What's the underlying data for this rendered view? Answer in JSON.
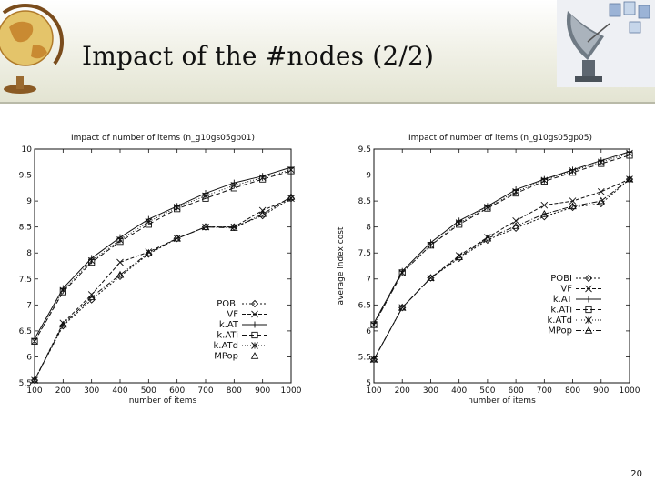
{
  "slide": {
    "title": "Impact of the #nodes (2/2)",
    "page_number": "20",
    "icons": [
      "globe-icon",
      "satellite-dish-icon"
    ],
    "colors": {
      "header_top": "#ffffff",
      "header_bottom": "#e3e4d2",
      "divider": "#b9baa8"
    }
  },
  "chart_data": [
    {
      "type": "line",
      "title": "Impact of number of items (n_g10gs05gp01)",
      "xlabel": "number of items",
      "ylabel": "",
      "x": [
        100,
        200,
        300,
        400,
        500,
        600,
        700,
        800,
        900,
        1000
      ],
      "ylim": [
        5.5,
        10
      ],
      "yticks": [
        "5.5",
        "6",
        "6.5",
        "7",
        "7.5",
        "8",
        "8.5",
        "9",
        "9.5",
        "10"
      ],
      "xticks": [
        "100",
        "200",
        "300",
        "400",
        "500",
        "600",
        "700",
        "800",
        "900",
        "1000"
      ],
      "legend_position": "bottom-right",
      "series": [
        {
          "name": "POBI",
          "marker": "diamond",
          "dash": "2,2",
          "values": [
            5.55,
            6.6,
            7.1,
            7.55,
            7.98,
            8.28,
            8.5,
            8.5,
            8.72,
            9.05
          ]
        },
        {
          "name": "VF",
          "marker": "x",
          "dash": "4,2",
          "values": [
            5.55,
            6.65,
            7.2,
            7.82,
            8.02,
            8.28,
            8.5,
            8.5,
            8.82,
            9.05
          ]
        },
        {
          "name": "k.AT",
          "marker": "plus",
          "dash": "",
          "values": [
            6.35,
            7.32,
            7.9,
            8.3,
            8.65,
            8.9,
            9.15,
            9.35,
            9.48,
            9.65
          ]
        },
        {
          "name": "k.ATi",
          "marker": "square",
          "dash": "5,3",
          "values": [
            6.3,
            7.25,
            7.82,
            8.22,
            8.55,
            8.85,
            9.05,
            9.25,
            9.42,
            9.58
          ]
        },
        {
          "name": "k.ATd",
          "marker": "star",
          "dash": "1,2",
          "values": [
            6.3,
            7.28,
            7.85,
            8.25,
            8.6,
            8.88,
            9.1,
            9.3,
            9.45,
            9.6
          ]
        },
        {
          "name": "MPop",
          "marker": "triangle",
          "dash": "6,2,1,2",
          "values": [
            5.55,
            6.62,
            7.15,
            7.58,
            8.0,
            8.28,
            8.5,
            8.48,
            8.75,
            9.08
          ]
        }
      ]
    },
    {
      "type": "line",
      "title": "Impact of number of items (n_g10gs05gp05)",
      "xlabel": "number of items",
      "ylabel": "average index cost",
      "x": [
        100,
        200,
        300,
        400,
        500,
        600,
        700,
        800,
        900,
        1000
      ],
      "ylim": [
        5,
        9.5
      ],
      "yticks": [
        "5",
        "5.5",
        "6",
        "6.5",
        "7",
        "7.5",
        "8",
        "8.5",
        "9",
        "9.5"
      ],
      "xticks": [
        "100",
        "200",
        "300",
        "400",
        "500",
        "600",
        "700",
        "800",
        "900",
        "1000"
      ],
      "legend_position": "right",
      "series": [
        {
          "name": "POBI",
          "marker": "diamond",
          "dash": "2,2",
          "values": [
            5.45,
            6.45,
            7.02,
            7.4,
            7.75,
            7.98,
            8.2,
            8.38,
            8.45,
            8.92
          ]
        },
        {
          "name": "VF",
          "marker": "x",
          "dash": "4,2",
          "values": [
            5.45,
            6.45,
            7.02,
            7.45,
            7.8,
            8.12,
            8.42,
            8.5,
            8.68,
            8.92
          ]
        },
        {
          "name": "k.AT",
          "marker": "plus",
          "dash": "",
          "values": [
            6.15,
            7.15,
            7.7,
            8.12,
            8.4,
            8.72,
            8.92,
            9.1,
            9.28,
            9.45
          ]
        },
        {
          "name": "k.ATi",
          "marker": "square",
          "dash": "5,3",
          "values": [
            6.12,
            7.12,
            7.65,
            8.05,
            8.36,
            8.65,
            8.88,
            9.05,
            9.22,
            9.38
          ]
        },
        {
          "name": "k.ATd",
          "marker": "star",
          "dash": "1,2",
          "values": [
            6.12,
            7.12,
            7.65,
            8.08,
            8.38,
            8.68,
            8.9,
            9.08,
            9.25,
            9.42
          ]
        },
        {
          "name": "MPop",
          "marker": "triangle",
          "dash": "6,2,1,2",
          "values": [
            5.45,
            6.45,
            7.02,
            7.42,
            7.78,
            8.02,
            8.25,
            8.4,
            8.5,
            8.92
          ]
        }
      ]
    }
  ]
}
